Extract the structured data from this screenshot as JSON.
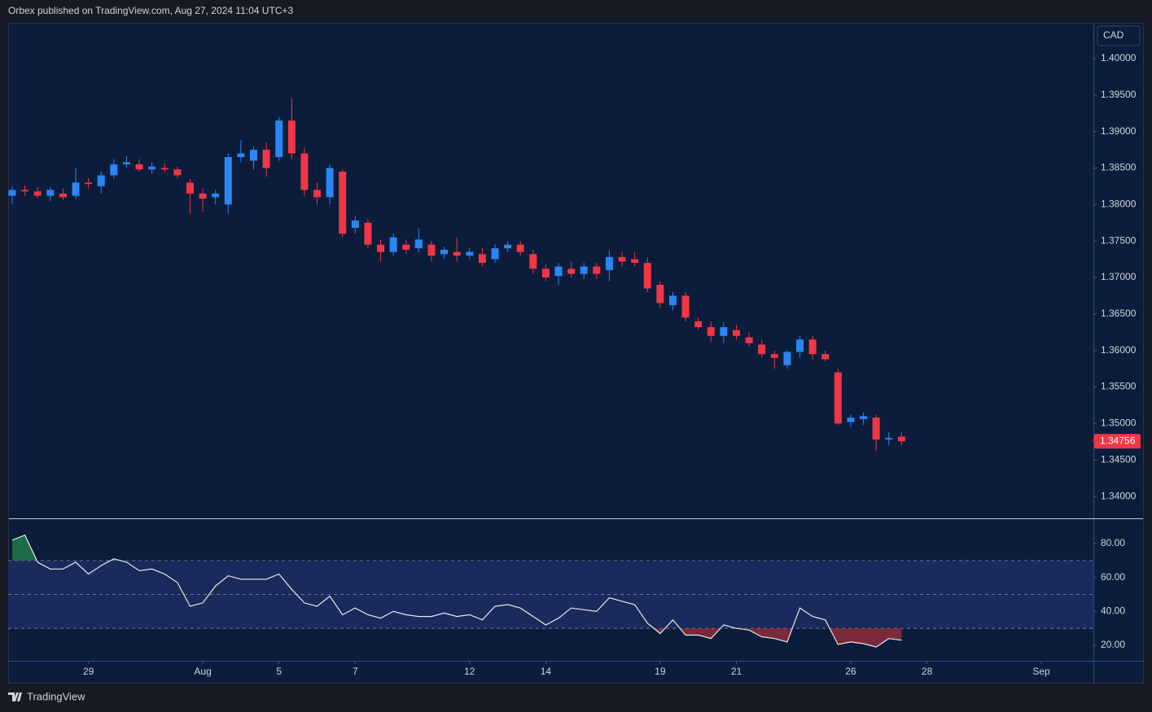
{
  "header": {
    "text": "Orbex published on TradingView.com, Aug 27, 2024 11:04 UTC+3"
  },
  "footer": {
    "brand": "TradingView"
  },
  "chart_data": [
    {
      "type": "candlestick",
      "y_axis_label": "CAD",
      "up_color": "#2a86f5",
      "down_color": "#f23645",
      "open": [
        1.3812,
        1.382,
        1.3818,
        1.3812,
        1.3815,
        1.3812,
        1.383,
        1.3825,
        1.384,
        1.3855,
        1.3855,
        1.3848,
        1.385,
        1.3848,
        1.383,
        1.3815,
        1.381,
        1.38,
        1.3865,
        1.386,
        1.3875,
        1.3865,
        1.3915,
        1.387,
        1.382,
        1.381,
        1.3845,
        1.3768,
        1.3775,
        1.3745,
        1.3735,
        1.3745,
        1.374,
        1.3745,
        1.3732,
        1.3735,
        1.373,
        1.3732,
        1.3725,
        1.374,
        1.3745,
        1.3732,
        1.3712,
        1.3702,
        1.3712,
        1.3705,
        1.3715,
        1.371,
        1.3728,
        1.3725,
        1.372,
        1.369,
        1.3662,
        1.3675,
        1.364,
        1.3632,
        1.362,
        1.3628,
        1.3618,
        1.3608,
        1.3595,
        1.358,
        1.3598,
        1.3615,
        1.3595,
        1.357,
        1.3502,
        1.3506,
        1.3508,
        1.3478,
        1.3482
      ],
      "high": [
        1.3825,
        1.3826,
        1.3824,
        1.3824,
        1.3822,
        1.385,
        1.3836,
        1.3845,
        1.3862,
        1.3866,
        1.3862,
        1.3858,
        1.3856,
        1.3852,
        1.3835,
        1.3822,
        1.382,
        1.387,
        1.3888,
        1.388,
        1.3885,
        1.392,
        1.3946,
        1.3878,
        1.383,
        1.3855,
        1.3848,
        1.3785,
        1.378,
        1.3752,
        1.376,
        1.3752,
        1.3767,
        1.375,
        1.3742,
        1.3755,
        1.374,
        1.374,
        1.3745,
        1.375,
        1.375,
        1.3738,
        1.3718,
        1.372,
        1.3722,
        1.372,
        1.372,
        1.3737,
        1.3735,
        1.3735,
        1.3728,
        1.3695,
        1.368,
        1.368,
        1.3645,
        1.364,
        1.3638,
        1.3635,
        1.3625,
        1.3615,
        1.36,
        1.36,
        1.362,
        1.362,
        1.36,
        1.3575,
        1.3512,
        1.3515,
        1.3512,
        1.3488,
        1.3488
      ],
      "low": [
        1.38,
        1.3812,
        1.3808,
        1.3805,
        1.3806,
        1.3808,
        1.3822,
        1.3815,
        1.3835,
        1.385,
        1.3845,
        1.3842,
        1.3844,
        1.3835,
        1.3788,
        1.379,
        1.38,
        1.3788,
        1.3858,
        1.3848,
        1.3838,
        1.386,
        1.3862,
        1.3812,
        1.38,
        1.38,
        1.3755,
        1.376,
        1.374,
        1.3722,
        1.373,
        1.3732,
        1.3735,
        1.3722,
        1.3725,
        1.3722,
        1.3725,
        1.3715,
        1.372,
        1.3735,
        1.373,
        1.3705,
        1.3695,
        1.369,
        1.37,
        1.3698,
        1.3698,
        1.3695,
        1.3715,
        1.3715,
        1.368,
        1.3658,
        1.3655,
        1.364,
        1.3628,
        1.3612,
        1.361,
        1.3615,
        1.3605,
        1.359,
        1.3575,
        1.3575,
        1.359,
        1.3588,
        1.3585,
        1.3498,
        1.3495,
        1.3498,
        1.3462,
        1.347,
        1.347
      ],
      "close": [
        1.382,
        1.3818,
        1.3812,
        1.382,
        1.381,
        1.383,
        1.3828,
        1.384,
        1.3855,
        1.3858,
        1.3848,
        1.3852,
        1.3848,
        1.384,
        1.3815,
        1.3808,
        1.3815,
        1.3865,
        1.387,
        1.3875,
        1.385,
        1.3915,
        1.387,
        1.382,
        1.381,
        1.385,
        1.376,
        1.3778,
        1.3745,
        1.3735,
        1.3755,
        1.3738,
        1.3752,
        1.373,
        1.3738,
        1.373,
        1.3735,
        1.372,
        1.374,
        1.3745,
        1.3735,
        1.3712,
        1.37,
        1.3715,
        1.3705,
        1.3715,
        1.3705,
        1.3728,
        1.3722,
        1.372,
        1.3685,
        1.3665,
        1.3675,
        1.3645,
        1.3632,
        1.362,
        1.3632,
        1.362,
        1.361,
        1.3595,
        1.359,
        1.3598,
        1.3615,
        1.3595,
        1.3588,
        1.35,
        1.3508,
        1.351,
        1.3478,
        1.348,
        1.34756
      ],
      "last_price": 1.34756,
      "xlim": [
        -0.32,
        85.1
      ],
      "ylim": [
        1.337,
        1.4049
      ],
      "yticks": [
        {
          "value": 1.34,
          "label": "1.34000"
        },
        {
          "value": 1.345,
          "label": "1.34500"
        },
        {
          "value": 1.35,
          "label": "1.35000"
        },
        {
          "value": 1.355,
          "label": "1.35500"
        },
        {
          "value": 1.36,
          "label": "1.36000"
        },
        {
          "value": 1.365,
          "label": "1.36500"
        },
        {
          "value": 1.37,
          "label": "1.37000"
        },
        {
          "value": 1.375,
          "label": "1.37500"
        },
        {
          "value": 1.38,
          "label": "1.38000"
        },
        {
          "value": 1.385,
          "label": "1.38500"
        },
        {
          "value": 1.39,
          "label": "1.39000"
        },
        {
          "value": 1.395,
          "label": "1.39500"
        },
        {
          "value": 1.4,
          "label": "1.40000"
        }
      ]
    },
    {
      "type": "line",
      "color": "#e8e8e8",
      "band_color": "#1a2a5c",
      "overbought_color": "#1f6b45",
      "oversold_color": "#7a2a3a",
      "values": [
        82,
        85,
        69,
        65,
        65,
        69,
        62,
        67,
        71,
        69,
        64,
        65,
        62,
        57,
        43,
        45,
        55,
        61,
        59,
        59,
        59,
        62,
        53,
        45,
        43,
        49,
        38,
        42,
        38,
        36,
        40,
        38,
        37,
        37,
        39,
        37,
        38,
        35,
        43,
        44,
        42,
        37,
        32,
        36,
        42,
        41,
        40,
        48,
        46,
        44,
        33,
        27,
        35,
        26,
        26,
        24,
        32,
        30,
        29,
        25,
        24,
        22,
        42,
        37,
        35,
        20.5,
        22,
        21,
        19,
        24,
        23
      ],
      "bands": [
        30,
        50,
        70
      ],
      "xlim": [
        -0.32,
        85.1
      ],
      "ylim": [
        10.9,
        94.4
      ],
      "yticks": [
        {
          "value": 20,
          "label": "20.00"
        },
        {
          "value": 40,
          "label": "40.00"
        },
        {
          "value": 60,
          "label": "60.00"
        },
        {
          "value": 80,
          "label": "80.00"
        }
      ],
      "xticks": [
        {
          "value": 6,
          "label": "29"
        },
        {
          "value": 15,
          "label": "Aug"
        },
        {
          "value": 21,
          "label": "5"
        },
        {
          "value": 27,
          "label": "7"
        },
        {
          "value": 36,
          "label": "12"
        },
        {
          "value": 42,
          "label": "14"
        },
        {
          "value": 51,
          "label": "19"
        },
        {
          "value": 57,
          "label": "21"
        },
        {
          "value": 66,
          "label": "26"
        },
        {
          "value": 72,
          "label": "28"
        },
        {
          "value": 81,
          "label": "Sep"
        }
      ]
    }
  ]
}
